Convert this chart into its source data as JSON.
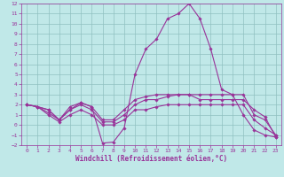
{
  "xlabel": "Windchill (Refroidissement éolien,°C)",
  "background_color": "#c0e8e8",
  "grid_color": "#90c0c0",
  "line_color": "#993399",
  "spine_color": "#993399",
  "x": [
    0,
    1,
    2,
    3,
    4,
    5,
    6,
    7,
    8,
    9,
    10,
    11,
    12,
    13,
    14,
    15,
    16,
    17,
    18,
    19,
    20,
    21,
    22,
    23
  ],
  "line1": [
    2.0,
    1.8,
    1.5,
    0.5,
    1.8,
    2.2,
    1.8,
    -1.8,
    -1.7,
    -0.3,
    5.0,
    7.5,
    8.5,
    10.5,
    11.0,
    12.0,
    10.5,
    7.5,
    3.5,
    3.0,
    1.0,
    -0.5,
    -1.0,
    -1.2
  ],
  "line2": [
    2.0,
    1.8,
    1.5,
    0.5,
    1.5,
    2.2,
    1.8,
    0.5,
    0.5,
    1.5,
    2.5,
    2.8,
    3.0,
    3.0,
    3.0,
    3.0,
    3.0,
    3.0,
    3.0,
    3.0,
    3.0,
    1.0,
    0.5,
    -1.0
  ],
  "line3": [
    2.0,
    1.8,
    1.0,
    0.3,
    1.0,
    1.5,
    1.0,
    0.0,
    0.0,
    0.5,
    1.5,
    1.5,
    1.8,
    2.0,
    2.0,
    2.0,
    2.0,
    2.0,
    2.0,
    2.0,
    2.0,
    0.5,
    -0.3,
    -1.0
  ],
  "line4": [
    2.0,
    1.8,
    1.2,
    0.5,
    1.5,
    2.0,
    1.5,
    0.3,
    0.3,
    1.0,
    2.0,
    2.5,
    2.5,
    2.8,
    3.0,
    3.0,
    2.5,
    2.5,
    2.5,
    2.5,
    2.5,
    1.5,
    0.8,
    -1.2
  ],
  "ylim": [
    -2,
    12
  ],
  "xlim": [
    -0.5,
    23.5
  ],
  "yticks": [
    -2,
    -1,
    0,
    1,
    2,
    3,
    4,
    5,
    6,
    7,
    8,
    9,
    10,
    11,
    12
  ],
  "xticks": [
    0,
    1,
    2,
    3,
    4,
    5,
    6,
    7,
    8,
    9,
    10,
    11,
    12,
    13,
    14,
    15,
    16,
    17,
    18,
    19,
    20,
    21,
    22,
    23
  ],
  "marker": "D",
  "markersize": 1.8,
  "linewidth": 0.8,
  "label_fontsize": 5.5,
  "tick_fontsize": 4.5
}
